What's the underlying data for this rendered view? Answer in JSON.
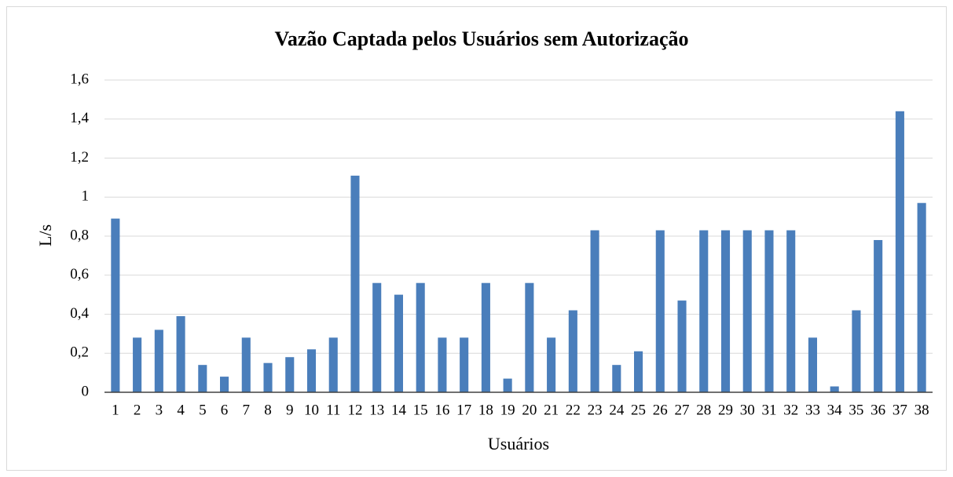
{
  "chart_data": {
    "type": "bar",
    "title": "Vazão Captada pelos Usuários sem Autorização",
    "x_label": "Usuários",
    "y_label": "L/s",
    "categories": [
      "1",
      "2",
      "3",
      "4",
      "5",
      "6",
      "7",
      "8",
      "9",
      "10",
      "11",
      "12",
      "13",
      "14",
      "15",
      "16",
      "17",
      "18",
      "19",
      "20",
      "21",
      "22",
      "23",
      "24",
      "25",
      "26",
      "27",
      "28",
      "29",
      "30",
      "31",
      "32",
      "33",
      "34",
      "35",
      "36",
      "37",
      "38"
    ],
    "values": [
      0.89,
      0.28,
      0.32,
      0.39,
      0.14,
      0.08,
      0.28,
      0.15,
      0.18,
      0.22,
      0.28,
      1.11,
      0.56,
      0.5,
      0.56,
      0.28,
      0.28,
      0.56,
      0.07,
      0.56,
      0.28,
      0.42,
      0.83,
      0.14,
      0.21,
      0.83,
      0.47,
      0.83,
      0.83,
      0.83,
      0.83,
      0.83,
      0.28,
      0.03,
      0.42,
      0.78,
      1.44,
      0.97
    ],
    "color": "#4a7ebb",
    "ylim": [
      0,
      1.6
    ],
    "yticks": [
      0,
      {
        "value": 0.2,
        "label": "0,2"
      },
      {
        "value": 0.4,
        "label": "0,4"
      },
      {
        "value": 0.6,
        "label": "0,6"
      },
      {
        "value": 0.8,
        "label": "0,8"
      },
      1,
      {
        "value": 1.2,
        "label": "1,2"
      },
      {
        "value": 1.4,
        "label": "1,4"
      },
      {
        "value": 1.6,
        "label": "1,6"
      }
    ],
    "grid": true
  }
}
